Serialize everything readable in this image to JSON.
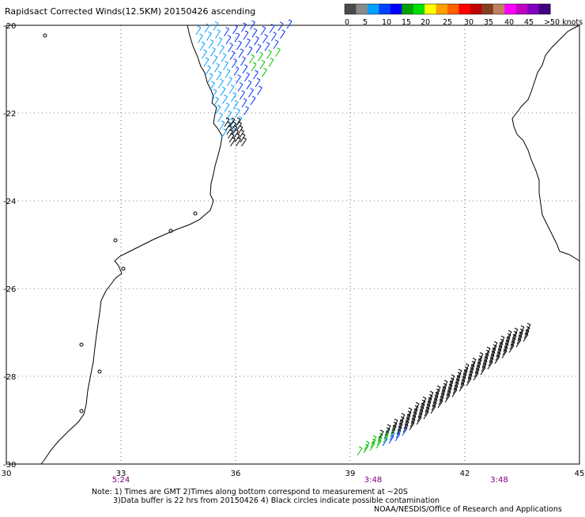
{
  "title": "Rapidsact Corrected Winds(12.5KM) 20150426 ascending",
  "legend": {
    "colors": [
      "#4a4a4a",
      "#8a8a8a",
      "#00a0ff",
      "#0040ff",
      "#0000ff",
      "#00a000",
      "#00e000",
      "#ffff00",
      "#ffa000",
      "#ff6000",
      "#ff0000",
      "#c00000",
      "#804020",
      "#c08060",
      "#ff00ff",
      "#c000c0",
      "#8000c0",
      "#400080"
    ],
    "labels": [
      "0",
      "5",
      "10",
      "15",
      "20",
      "25",
      "30",
      "35",
      "40",
      "45",
      ">50 knots"
    ]
  },
  "axes": {
    "lon_ticks": [
      "30",
      "33",
      "36",
      "39",
      "42",
      "45"
    ],
    "lat_ticks": [
      "-20",
      "-22",
      "-24",
      "-26",
      "-28",
      "-30"
    ],
    "lon_range": [
      30,
      45
    ],
    "lat_range": [
      -20,
      -30
    ]
  },
  "pass_times": [
    {
      "lon": 33,
      "label": "5:24"
    },
    {
      "lon": 39.6,
      "label": "3:48"
    },
    {
      "lon": 42.9,
      "label": "3:48"
    }
  ],
  "notes": {
    "line1": "Note: 1) Times are GMT 2)Times along bottom correspond to measurement at ~20S",
    "line2": "3)Data buffer is 22 hrs from 20150426 4) Black circles indicate possible contamination",
    "credit": "NOAA/NESDIS/Office of Research and Applications"
  },
  "colors": {
    "time_label": "#800080",
    "grid": "#000000",
    "coast": "#000000"
  }
}
